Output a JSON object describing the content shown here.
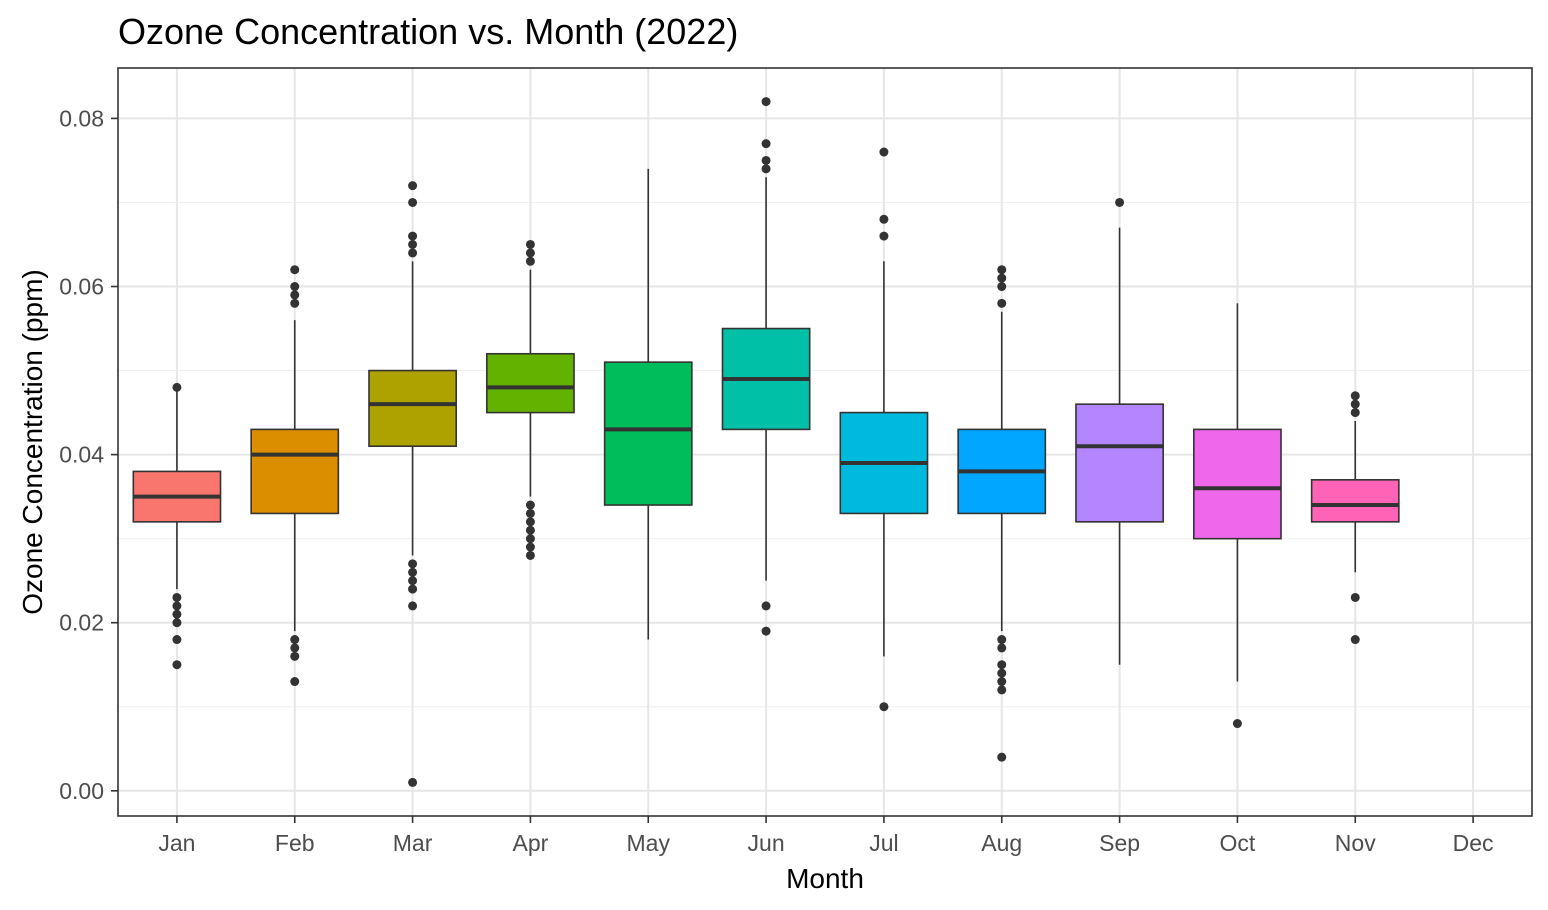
{
  "chart_data": {
    "type": "box",
    "title": "Ozone Concentration vs. Month (2022)",
    "xlabel": "Month",
    "ylabel": "Ozone Concentration (ppm)",
    "categories": [
      "Jan",
      "Feb",
      "Mar",
      "Apr",
      "May",
      "Jun",
      "Jul",
      "Aug",
      "Sep",
      "Oct",
      "Nov",
      "Dec"
    ],
    "ylim": [
      -0.003,
      0.086
    ],
    "yticks": [
      0.0,
      0.02,
      0.04,
      0.06,
      0.08
    ],
    "ytick_labels": [
      "0.00",
      "0.02",
      "0.04",
      "0.06",
      "0.08"
    ],
    "grid": true,
    "legend": "none",
    "boxes": [
      {
        "month": "Jan",
        "whisker_low": 0.024,
        "q1": 0.032,
        "median": 0.035,
        "q3": 0.038,
        "whisker_high": 0.048,
        "outliers": [
          0.023,
          0.022,
          0.021,
          0.02,
          0.018,
          0.015,
          0.048
        ],
        "color": "#F8766D"
      },
      {
        "month": "Feb",
        "whisker_low": 0.019,
        "q1": 0.033,
        "median": 0.04,
        "q3": 0.043,
        "whisker_high": 0.056,
        "outliers": [
          0.062,
          0.06,
          0.059,
          0.058,
          0.018,
          0.017,
          0.016,
          0.013
        ],
        "color": "#DB8E00"
      },
      {
        "month": "Mar",
        "whisker_low": 0.028,
        "q1": 0.041,
        "median": 0.046,
        "q3": 0.05,
        "whisker_high": 0.063,
        "outliers": [
          0.072,
          0.07,
          0.066,
          0.065,
          0.064,
          0.027,
          0.026,
          0.025,
          0.024,
          0.022,
          0.001
        ],
        "color": "#AEA200"
      },
      {
        "month": "Apr",
        "whisker_low": 0.035,
        "q1": 0.045,
        "median": 0.048,
        "q3": 0.052,
        "whisker_high": 0.062,
        "outliers": [
          0.065,
          0.064,
          0.063,
          0.034,
          0.033,
          0.032,
          0.031,
          0.03,
          0.029,
          0.028
        ],
        "color": "#64B200"
      },
      {
        "month": "May",
        "whisker_low": 0.018,
        "q1": 0.034,
        "median": 0.043,
        "q3": 0.051,
        "whisker_high": 0.074,
        "outliers": [],
        "color": "#00BD5C"
      },
      {
        "month": "Jun",
        "whisker_low": 0.025,
        "q1": 0.043,
        "median": 0.049,
        "q3": 0.055,
        "whisker_high": 0.073,
        "outliers": [
          0.082,
          0.077,
          0.075,
          0.074,
          0.022,
          0.019
        ],
        "color": "#00C1A7"
      },
      {
        "month": "Jul",
        "whisker_low": 0.016,
        "q1": 0.033,
        "median": 0.039,
        "q3": 0.045,
        "whisker_high": 0.063,
        "outliers": [
          0.076,
          0.068,
          0.066,
          0.01
        ],
        "color": "#00BADE"
      },
      {
        "month": "Aug",
        "whisker_low": 0.019,
        "q1": 0.033,
        "median": 0.038,
        "q3": 0.043,
        "whisker_high": 0.057,
        "outliers": [
          0.062,
          0.061,
          0.06,
          0.058,
          0.018,
          0.017,
          0.015,
          0.014,
          0.013,
          0.012,
          0.004
        ],
        "color": "#00A6FF"
      },
      {
        "month": "Sep",
        "whisker_low": 0.015,
        "q1": 0.032,
        "median": 0.041,
        "q3": 0.046,
        "whisker_high": 0.067,
        "outliers": [
          0.07
        ],
        "color": "#B385FF"
      },
      {
        "month": "Oct",
        "whisker_low": 0.013,
        "q1": 0.03,
        "median": 0.036,
        "q3": 0.043,
        "whisker_high": 0.058,
        "outliers": [
          0.008
        ],
        "color": "#EF67EB"
      },
      {
        "month": "Nov",
        "whisker_low": 0.026,
        "q1": 0.032,
        "median": 0.034,
        "q3": 0.037,
        "whisker_high": 0.044,
        "outliers": [
          0.047,
          0.046,
          0.045,
          0.023,
          0.018
        ],
        "color": "#FF63B6"
      }
    ]
  }
}
